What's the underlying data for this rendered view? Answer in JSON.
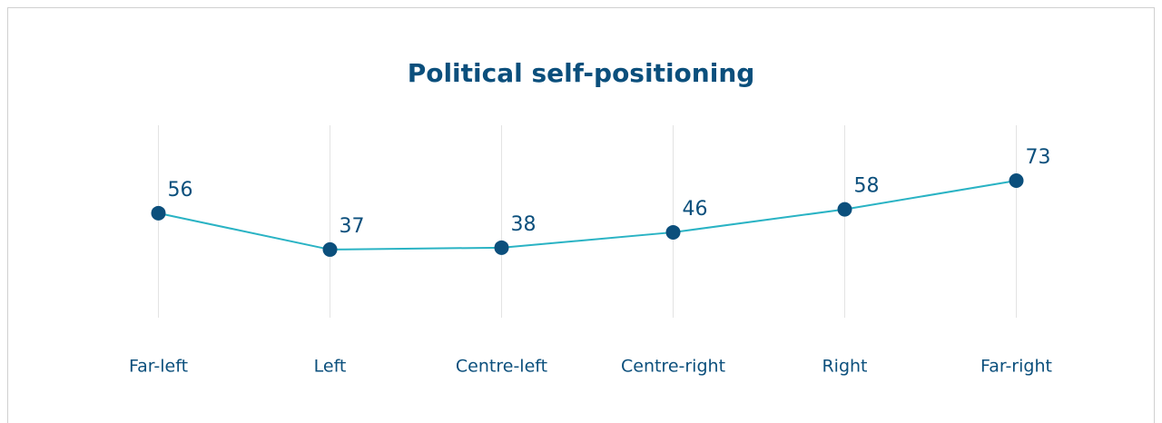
{
  "chart_data": {
    "type": "line",
    "title": "Political self-positioning",
    "categories": [
      "Far-left",
      "Left",
      "Centre-left",
      "Centre-right",
      "Right",
      "Far-right"
    ],
    "values": [
      56,
      37,
      38,
      46,
      58,
      73
    ],
    "color": "#2ab3c4",
    "marker_color": "#0b4f7c",
    "ylim": [
      0,
      100
    ],
    "grid": true
  }
}
